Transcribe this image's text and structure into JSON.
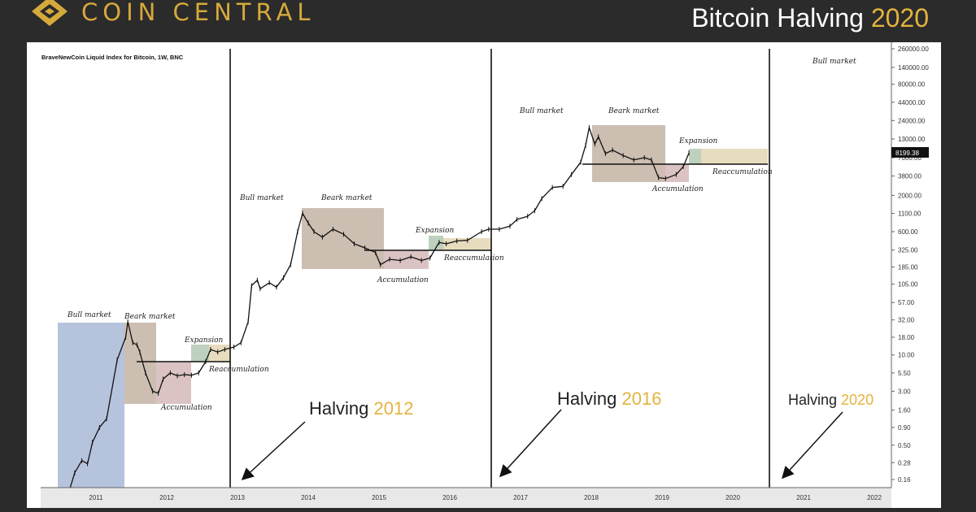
{
  "header": {
    "brand": "COIN CENTRAL",
    "title_main": "Bitcoin Halving ",
    "title_year": "2020",
    "logo_icon": "coincentral-diamond-icon",
    "brand_color": "#d6a93b"
  },
  "chart_data": {
    "type": "line",
    "title": "BraveNewCoin Liquid Index for Bitcoin, 1W, BNC",
    "y_scale": "log",
    "x_ticks": [
      "2011",
      "2012",
      "2013",
      "2014",
      "2015",
      "2016",
      "2017",
      "2018",
      "2019",
      "2020",
      "2021",
      "2022"
    ],
    "y_ticks": [
      "260000.00",
      "140000.00",
      "80000.00",
      "44000.00",
      "24000.00",
      "13000.00",
      "7000.00",
      "3800.00",
      "2000.00",
      "1100.00",
      "600.00",
      "325.00",
      "185.00",
      "105.00",
      "57.00",
      "32.00",
      "18.00",
      "10.00",
      "5.50",
      "3.00",
      "1.60",
      "0.90",
      "0.50",
      "0.28",
      "0.16"
    ],
    "last_price": "8199.38",
    "series": [
      {
        "x": [
          2010.58,
          2010.7,
          2010.8,
          2010.88,
          2010.95,
          2011.05,
          2011.15,
          2011.3,
          2011.42,
          2011.45,
          2011.52,
          2011.58,
          2011.62,
          2011.7,
          2011.8,
          2011.88,
          2011.95,
          2012.05,
          2012.15,
          2012.25,
          2012.35,
          2012.45,
          2012.55,
          2012.62,
          2012.72,
          2012.82,
          2012.95,
          2013.05,
          2013.15,
          2013.2,
          2013.28,
          2013.32,
          2013.45,
          2013.55,
          2013.65,
          2013.75,
          2013.85,
          2013.92,
          2014.0,
          2014.08,
          2014.2,
          2014.35,
          2014.5,
          2014.65,
          2014.8,
          2014.95,
          2015.02,
          2015.15,
          2015.3,
          2015.45,
          2015.6,
          2015.72,
          2015.85,
          2015.95,
          2016.1,
          2016.25,
          2016.45,
          2016.55,
          2016.7,
          2016.85,
          2016.95,
          2017.1,
          2017.2,
          2017.3,
          2017.45,
          2017.6,
          2017.72,
          2017.85,
          2017.92,
          2017.97,
          2018.05,
          2018.1,
          2018.2,
          2018.3,
          2018.45,
          2018.6,
          2018.75,
          2018.85,
          2018.95,
          2019.05,
          2019.2,
          2019.3,
          2019.38
        ],
        "y": [
          0.08,
          0.2,
          0.3,
          0.27,
          0.55,
          0.9,
          1.2,
          8.5,
          18,
          30,
          15,
          14,
          11,
          5.5,
          3,
          2.8,
          4.5,
          5.5,
          5,
          5.2,
          5.1,
          5.5,
          8,
          12,
          11,
          12,
          13,
          15,
          30,
          100,
          120,
          90,
          110,
          95,
          130,
          200,
          600,
          1100,
          800,
          600,
          500,
          650,
          550,
          400,
          350,
          300,
          200,
          240,
          230,
          260,
          230,
          250,
          420,
          400,
          440,
          450,
          600,
          650,
          650,
          720,
          900,
          1000,
          1200,
          1800,
          2600,
          2700,
          4000,
          6000,
          10500,
          19000,
          11000,
          14000,
          8000,
          9000,
          7500,
          6500,
          7000,
          6500,
          3600,
          3500,
          4000,
          5200,
          8200
        ]
      }
    ],
    "halvings": [
      {
        "label_main": "Halving ",
        "label_year": "2012"
      },
      {
        "label_main": "Halving ",
        "label_year": "2016"
      },
      {
        "label_main": "Halving ",
        "label_year": "2020"
      }
    ],
    "cycle_labels": [
      "Bull market",
      "Beark market",
      "Expansion",
      "Reaccumulation",
      "Accumulation"
    ],
    "annotations": {
      "c1": {
        "bull": "Bull market",
        "bear": "Beark market",
        "expansion": "Expansion",
        "reaccumulation": "Reaccumulation",
        "accumulation": "Accumulation"
      },
      "c2": {
        "bull": "Bull market",
        "bear": "Beark market",
        "expansion": "Expansion",
        "reaccumulation": "Reaccumulation",
        "accumulation": "Accumulation"
      },
      "c3": {
        "bull": "Bull market",
        "bear": "Beark market",
        "expansion": "Expansion",
        "reaccumulation": "Reaccumulation",
        "accumulation": "Accumulation"
      },
      "c4": {
        "bull": "Bull market"
      }
    },
    "zone_colors": {
      "bull": "#a9b9d6",
      "bear": "#c3b3a3",
      "accumulation": "#d6b9b9",
      "expansion": "#b3c9b3",
      "reaccumulation": "#e3d6b3"
    },
    "accent_color": "#e3b33d"
  }
}
